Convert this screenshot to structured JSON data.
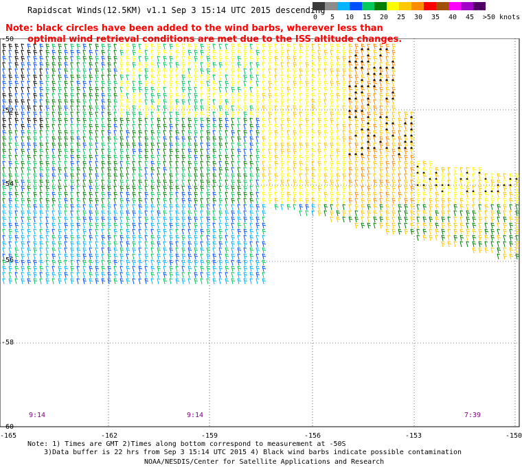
{
  "title": "Rapidscat Winds(12.5KM) v1.1 Sep  3 15:14 UTC 2015 descending",
  "note": {
    "line1": "Note: black circles have been added to the wind barbs, wherever less than",
    "line2": "optimal wind retrieval conditions are met due to the ISS altitude changes."
  },
  "colorbar": {
    "colors": [
      "#3a3a3a",
      "#8c8c8c",
      "#00b4ff",
      "#0050ff",
      "#00c85a",
      "#008000",
      "#ffff00",
      "#ffc800",
      "#ff8c00",
      "#ff0000",
      "#a05000",
      "#ff00ff",
      "#a000c8",
      "#500064"
    ],
    "labels": [
      "0",
      "5",
      "10",
      "15",
      "20",
      "25",
      "30",
      "35",
      "40",
      "45",
      ">50 knots"
    ]
  },
  "map": {
    "lat_labels": [
      "-50",
      "-52",
      "-54",
      "-56",
      "-58",
      "-60"
    ],
    "lon_labels": [
      "-165",
      "-162",
      "-159",
      "-156",
      "-153",
      "-150"
    ],
    "time_labels": [
      "9:14",
      "9:14",
      "7:39"
    ],
    "lat_range": [
      -60,
      -50
    ],
    "lon_range": [
      -165,
      -150
    ]
  },
  "footer": {
    "line1": "Note: 1) Times are GMT 2)Times along bottom correspond to measurement at -50S",
    "line2": "3)Data buffer is 22 hrs from Sep  3 15:14 UTC 2015 4) Black wind barbs indicate possible contamination",
    "line3": "NOAA/NESDIS/Center for Satellite Applications and Research"
  }
}
